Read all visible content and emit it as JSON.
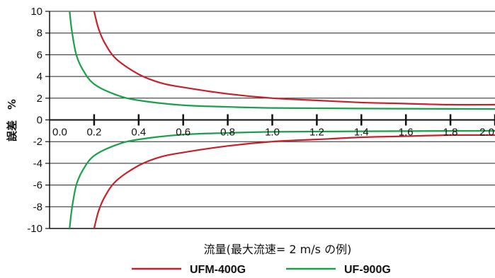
{
  "chart_data": {
    "type": "line",
    "xlabel": "流量(最大流速= 2 m/s の例)",
    "ylabel": "誤差　%",
    "xlim": [
      0.0,
      2.0
    ],
    "ylim": [
      -10,
      10
    ],
    "x_ticks": [
      "0.0",
      "0.2",
      "0.4",
      "0.6",
      "0.8",
      "1.0",
      "1.2",
      "1.4",
      "1.6",
      "1.8",
      "2.0"
    ],
    "y_ticks": [
      "10",
      "8",
      "6",
      "4",
      "2",
      "0",
      "-2",
      "-4",
      "-6",
      "-8",
      "-10"
    ],
    "grid": true,
    "legend_position": "bottom",
    "series": [
      {
        "name": "UFM-400G",
        "color": "#c8202a",
        "band": "upper",
        "x": [
          0.2,
          0.22,
          0.25,
          0.3,
          0.4,
          0.5,
          0.6,
          0.8,
          1.0,
          1.2,
          1.4,
          1.6,
          1.8,
          2.0
        ],
        "y": [
          10,
          8.4,
          7.0,
          5.6,
          4.2,
          3.4,
          3.0,
          2.4,
          2.0,
          1.8,
          1.6,
          1.5,
          1.4,
          1.4
        ]
      },
      {
        "name": "UFM-400G",
        "color": "#c8202a",
        "band": "lower",
        "x": [
          0.2,
          0.22,
          0.25,
          0.3,
          0.4,
          0.5,
          0.6,
          0.8,
          1.0,
          1.2,
          1.4,
          1.6,
          1.8,
          2.0
        ],
        "y": [
          -10,
          -8.4,
          -7.0,
          -5.6,
          -4.2,
          -3.4,
          -3.0,
          -2.4,
          -2.0,
          -1.8,
          -1.6,
          -1.5,
          -1.4,
          -1.4
        ]
      },
      {
        "name": "UF-900G",
        "color": "#1aa04a",
        "band": "upper",
        "x": [
          0.09,
          0.1,
          0.12,
          0.15,
          0.2,
          0.3,
          0.4,
          0.6,
          0.8,
          1.0,
          1.4,
          2.0
        ],
        "y": [
          10,
          8.2,
          6.0,
          4.6,
          3.3,
          2.3,
          1.8,
          1.35,
          1.2,
          1.1,
          1.05,
          1.0
        ]
      },
      {
        "name": "UF-900G",
        "color": "#1aa04a",
        "band": "lower",
        "x": [
          0.09,
          0.1,
          0.12,
          0.15,
          0.2,
          0.3,
          0.4,
          0.6,
          0.8,
          1.0,
          1.4,
          2.0
        ],
        "y": [
          -10,
          -8.2,
          -6.0,
          -4.6,
          -3.3,
          -2.3,
          -1.8,
          -1.35,
          -1.2,
          -1.1,
          -1.05,
          -1.0
        ]
      }
    ],
    "legend": [
      {
        "name": "UFM-400G",
        "color": "#c8202a"
      },
      {
        "name": "UF-900G",
        "color": "#1aa04a"
      }
    ]
  }
}
